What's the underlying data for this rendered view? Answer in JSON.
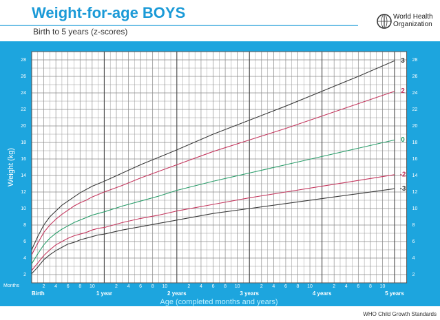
{
  "chart_data": {
    "type": "line",
    "title": "Weight-for-age BOYS",
    "subtitle": "Birth to 5 years (z-scores)",
    "organization": "World Health Organization",
    "y_label": "Weight (kg)",
    "x_label": "Age (completed months and years)",
    "x_unit_label": "Months",
    "footer": "WHO Child Growth Standards",
    "x": [
      0,
      1,
      2,
      3,
      4,
      5,
      6,
      7,
      8,
      9,
      10,
      11,
      12,
      15,
      18,
      21,
      24,
      30,
      36,
      42,
      48,
      54,
      60
    ],
    "series": [
      {
        "name": "3",
        "color": "#3a3a3a",
        "values": [
          5.0,
          6.6,
          8.0,
          9.0,
          9.7,
          10.4,
          10.9,
          11.4,
          11.9,
          12.3,
          12.7,
          13.0,
          13.3,
          14.3,
          15.3,
          16.2,
          17.1,
          19.0,
          20.7,
          22.4,
          24.2,
          26.0,
          27.9
        ]
      },
      {
        "name": "2",
        "color": "#c4375e",
        "values": [
          4.4,
          5.8,
          7.1,
          8.0,
          8.7,
          9.3,
          9.8,
          10.3,
          10.7,
          11.0,
          11.4,
          11.7,
          12.0,
          12.8,
          13.7,
          14.5,
          15.3,
          16.9,
          18.3,
          19.7,
          21.2,
          22.7,
          24.2
        ]
      },
      {
        "name": "0",
        "color": "#2a9d6a",
        "values": [
          3.3,
          4.5,
          5.6,
          6.4,
          7.0,
          7.5,
          7.9,
          8.3,
          8.6,
          8.9,
          9.2,
          9.4,
          9.6,
          10.3,
          10.9,
          11.5,
          12.2,
          13.3,
          14.3,
          15.3,
          16.3,
          17.3,
          18.3
        ]
      },
      {
        "name": "-2",
        "color": "#c4375e",
        "values": [
          2.5,
          3.4,
          4.3,
          5.0,
          5.6,
          6.0,
          6.4,
          6.7,
          6.9,
          7.1,
          7.4,
          7.6,
          7.7,
          8.3,
          8.8,
          9.2,
          9.7,
          10.5,
          11.3,
          12.0,
          12.7,
          13.4,
          14.1
        ]
      },
      {
        "name": "-3",
        "color": "#3a3a3a",
        "values": [
          2.1,
          2.9,
          3.8,
          4.4,
          4.9,
          5.3,
          5.7,
          5.9,
          6.2,
          6.4,
          6.6,
          6.8,
          6.9,
          7.4,
          7.8,
          8.2,
          8.6,
          9.4,
          10.0,
          10.6,
          11.2,
          11.8,
          12.4
        ]
      }
    ],
    "xlim": [
      0,
      62
    ],
    "ylim": [
      1,
      29
    ],
    "yticks": [
      2,
      4,
      6,
      8,
      10,
      12,
      14,
      16,
      18,
      20,
      22,
      24,
      26,
      28
    ],
    "y_minor_ticks": [
      1,
      3,
      5,
      7,
      9,
      11,
      13,
      15,
      17,
      19,
      21,
      23,
      25,
      27,
      29
    ],
    "xticks": [
      {
        "value": 2,
        "label": "2"
      },
      {
        "value": 4,
        "label": "4"
      },
      {
        "value": 6,
        "label": "6"
      },
      {
        "value": 8,
        "label": "8"
      },
      {
        "value": 10,
        "label": "10"
      },
      {
        "value": 14,
        "label": "2"
      },
      {
        "value": 16,
        "label": "4"
      },
      {
        "value": 18,
        "label": "6"
      },
      {
        "value": 20,
        "label": "8"
      },
      {
        "value": 22,
        "label": "10"
      },
      {
        "value": 26,
        "label": "2"
      },
      {
        "value": 28,
        "label": "4"
      },
      {
        "value": 30,
        "label": "6"
      },
      {
        "value": 32,
        "label": "8"
      },
      {
        "value": 34,
        "label": "10"
      },
      {
        "value": 38,
        "label": "2"
      },
      {
        "value": 40,
        "label": "4"
      },
      {
        "value": 42,
        "label": "6"
      },
      {
        "value": 44,
        "label": "8"
      },
      {
        "value": 46,
        "label": "10"
      },
      {
        "value": 50,
        "label": "2"
      },
      {
        "value": 52,
        "label": "4"
      },
      {
        "value": 54,
        "label": "6"
      },
      {
        "value": 56,
        "label": "8"
      },
      {
        "value": 58,
        "label": "10"
      }
    ],
    "x_minor_ticks": [
      1,
      3,
      5,
      7,
      9,
      11,
      13,
      15,
      17,
      19,
      21,
      23,
      25,
      27,
      29,
      31,
      33,
      35,
      37,
      39,
      41,
      43,
      45,
      47,
      49,
      51,
      53,
      55,
      57,
      59,
      61,
      62
    ],
    "year_ticks": [
      {
        "value": 0,
        "label": "Birth"
      },
      {
        "value": 12,
        "label": "1 year"
      },
      {
        "value": 24,
        "label": "2 years"
      },
      {
        "value": 36,
        "label": "3 years"
      },
      {
        "value": 48,
        "label": "4 years"
      },
      {
        "value": 60,
        "label": "5 years"
      }
    ],
    "grid": true
  }
}
